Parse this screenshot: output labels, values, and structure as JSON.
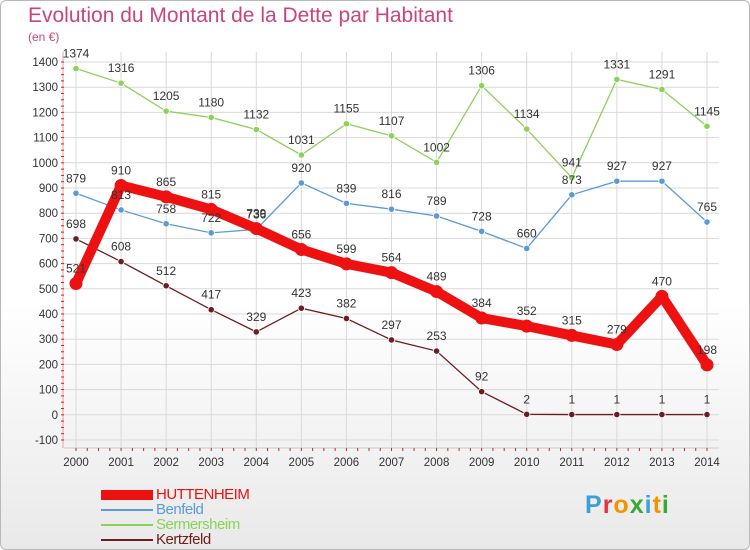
{
  "title": "Evolution du Montant de la Dette par Habitant",
  "subtitle": "(en €)",
  "logo": {
    "letters": [
      "P",
      "r",
      "o",
      "x",
      "i",
      "t",
      "i"
    ],
    "colors": [
      "#3b9fd8",
      "#e6323e",
      "#f29400",
      "#39a935",
      "#3b9fd8",
      "#f29400",
      "#39a935"
    ]
  },
  "colors": {
    "title": "#c8457f",
    "axis_text": "#333333",
    "grid": "#d9d9d9"
  },
  "chart_data": {
    "type": "line",
    "title": "Evolution du Montant de la Dette par Habitant",
    "ylabel": "(en €)",
    "xlabel": "",
    "x": [
      "2000",
      "2001",
      "2002",
      "2003",
      "2004",
      "2005",
      "2006",
      "2007",
      "2008",
      "2009",
      "2010",
      "2011",
      "2012",
      "2013",
      "2014"
    ],
    "ylim": [
      -100,
      1400
    ],
    "yticks": [
      -100,
      0,
      100,
      200,
      300,
      400,
      500,
      600,
      700,
      800,
      900,
      1000,
      1100,
      1200,
      1300,
      1400
    ],
    "grid": true,
    "legend_position": "bottom-left",
    "series": [
      {
        "name": "Sermersheim",
        "color": "#8bd15a",
        "emphasis": false,
        "values": [
          1374,
          1316,
          1205,
          1180,
          1132,
          1031,
          1155,
          1107,
          1002,
          1306,
          1134,
          941,
          1331,
          1291,
          1145
        ]
      },
      {
        "name": "Benfeld",
        "color": "#5b9bd5",
        "emphasis": false,
        "values": [
          879,
          813,
          758,
          722,
          736,
          920,
          839,
          816,
          789,
          728,
          660,
          873,
          927,
          927,
          765
        ]
      },
      {
        "name": "Kertzfeld",
        "color": "#6d1d1d",
        "emphasis": false,
        "values": [
          698,
          608,
          512,
          417,
          329,
          423,
          382,
          297,
          253,
          92,
          2,
          1,
          1,
          1,
          1
        ]
      },
      {
        "name": "HUTTENHEIM",
        "color": "#ee1111",
        "emphasis": true,
        "values": [
          521,
          910,
          865,
          815,
          739,
          656,
          599,
          564,
          489,
          384,
          352,
          315,
          279,
          470,
          198
        ]
      }
    ],
    "legend_order": [
      "HUTTENHEIM",
      "Benfeld",
      "Sermersheim",
      "Kertzfeld"
    ]
  }
}
